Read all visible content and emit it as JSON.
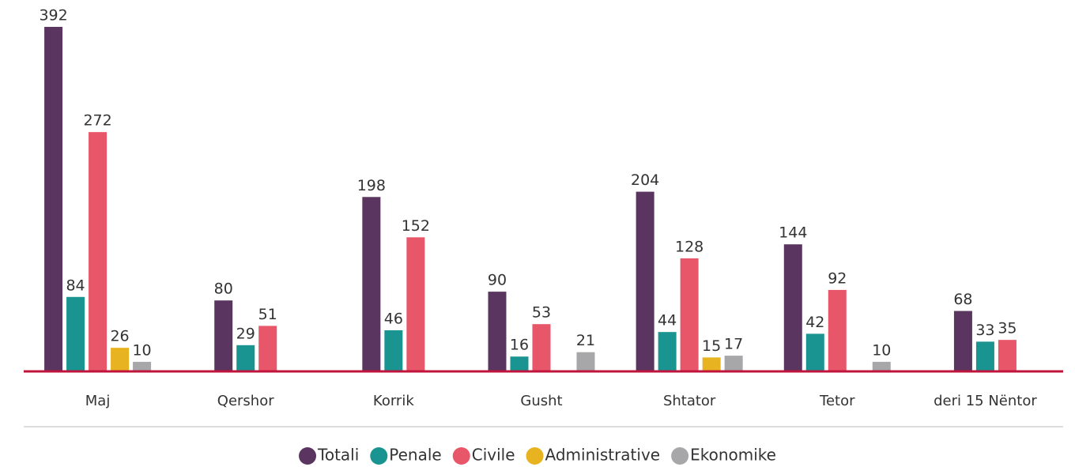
{
  "chart_data": {
    "type": "bar",
    "categories": [
      "Maj",
      "Qershor",
      "Korrik",
      "Gusht",
      "Shtator",
      "Tetor",
      "deri 15 Nëntor"
    ],
    "series": [
      {
        "name": "Totali",
        "color": "#5a3560",
        "values": [
          392,
          80,
          198,
          90,
          204,
          144,
          68
        ]
      },
      {
        "name": "Penale",
        "color": "#1a9490",
        "values": [
          84,
          29,
          46,
          16,
          44,
          42,
          33
        ]
      },
      {
        "name": "Civile",
        "color": "#e8566a",
        "values": [
          272,
          51,
          152,
          53,
          128,
          92,
          35
        ]
      },
      {
        "name": "Administrative",
        "color": "#e8b320",
        "values": [
          26,
          null,
          null,
          null,
          15,
          null,
          null
        ]
      },
      {
        "name": "Ekonomike",
        "color": "#a7a7aa",
        "values": [
          10,
          null,
          null,
          21,
          17,
          10,
          null
        ]
      }
    ],
    "legend": "bottom"
  }
}
